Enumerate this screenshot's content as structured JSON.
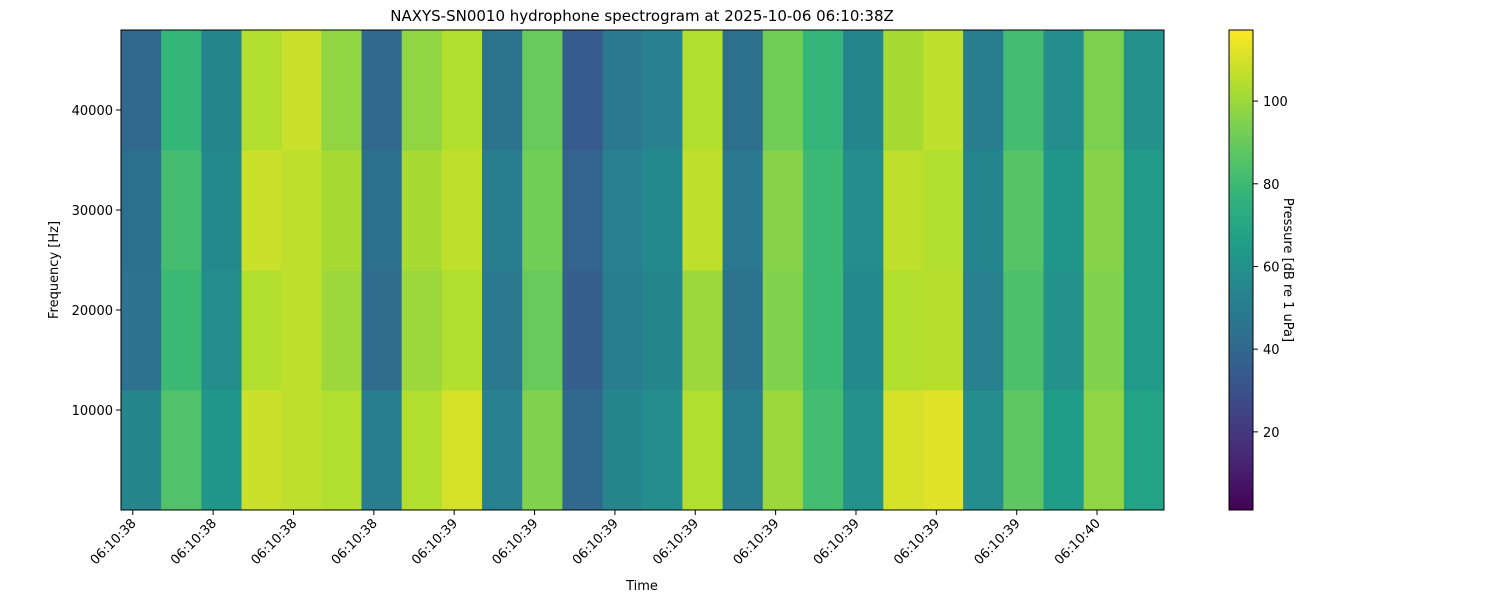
{
  "chart_data": {
    "type": "heatmap",
    "title": "NAXYS-SN0010 hydrophone spectrogram at 2025-10-06 06:10:38Z",
    "x_label": "Time",
    "y_label": "Frequency [Hz]",
    "colorbar_label": "Pressure [dB re 1 uPa]",
    "colormap": "viridis",
    "xlim": [
      38.428,
      40.375
    ],
    "xticks": [
      {
        "value": 38.45,
        "label": "06:10:38"
      },
      {
        "value": 38.6,
        "label": "06:10:38"
      },
      {
        "value": 38.75,
        "label": "06:10:38"
      },
      {
        "value": 38.9,
        "label": "06:10:38"
      },
      {
        "value": 39.05,
        "label": "06:10:39"
      },
      {
        "value": 39.2,
        "label": "06:10:39"
      },
      {
        "value": 39.35,
        "label": "06:10:39"
      },
      {
        "value": 39.5,
        "label": "06:10:39"
      },
      {
        "value": 39.65,
        "label": "06:10:39"
      },
      {
        "value": 39.8,
        "label": "06:10:39"
      },
      {
        "value": 39.95,
        "label": "06:10:39"
      },
      {
        "value": 40.1,
        "label": "06:10:39"
      },
      {
        "value": 40.25,
        "label": "06:10:40"
      }
    ],
    "ylim": [
      0,
      48000
    ],
    "yticks": [
      10000,
      20000,
      30000,
      40000
    ],
    "clim": [
      1.1,
      117.2
    ],
    "cticks": [
      20,
      40,
      60,
      80,
      100
    ],
    "x_bins": [
      38.428,
      38.503,
      38.578,
      38.653,
      38.728,
      38.802,
      38.877,
      38.952,
      39.027,
      39.102,
      39.177,
      39.252,
      39.327,
      39.401,
      39.476,
      39.551,
      39.626,
      39.701,
      39.776,
      39.851,
      39.926,
      40.0,
      40.075,
      40.15,
      40.225,
      40.3,
      40.375
    ],
    "y_bins": [
      0,
      12000,
      24000,
      36000,
      48000
    ],
    "z": [
      [
        55,
        85,
        62,
        108,
        106,
        104,
        50,
        104,
        110,
        52,
        95,
        40,
        55,
        58,
        104,
        50,
        100,
        82,
        60,
        110,
        112,
        58,
        88,
        65,
        98,
        68
      ],
      [
        45,
        80,
        58,
        104,
        106,
        100,
        42,
        100,
        104,
        48,
        90,
        36,
        50,
        54,
        100,
        46,
        95,
        80,
        56,
        104,
        105,
        52,
        84,
        60,
        95,
        64
      ],
      [
        44,
        82,
        56,
        108,
        106,
        102,
        44,
        102,
        106,
        50,
        92,
        38,
        52,
        56,
        106,
        48,
        96,
        80,
        58,
        106,
        104,
        54,
        86,
        62,
        96,
        64
      ],
      [
        40,
        78,
        54,
        104,
        108,
        98,
        40,
        98,
        104,
        46,
        90,
        34,
        48,
        52,
        104,
        44,
        92,
        78,
        54,
        102,
        106,
        50,
        82,
        58,
        94,
        60
      ]
    ]
  }
}
